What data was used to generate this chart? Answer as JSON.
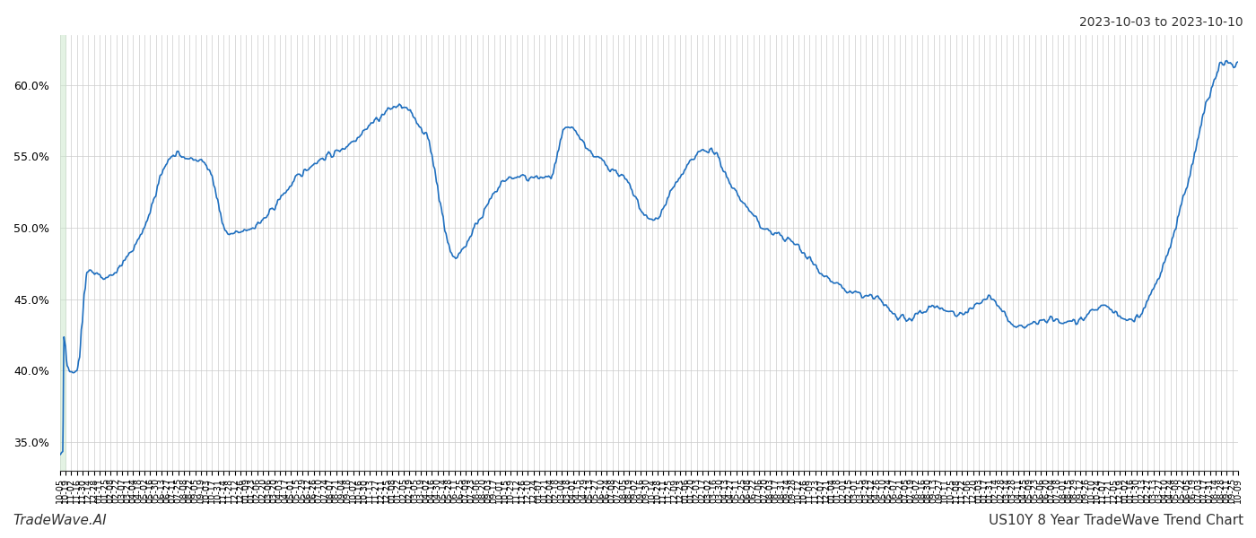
{
  "title_top_right": "2023-10-03 to 2023-10-10",
  "footer_left": "TradeWave.AI",
  "footer_right": "US10Y 8 Year TradeWave Trend Chart",
  "line_color": "#1f6fbf",
  "line_width": 1.2,
  "shading_color": "#c8e6c9",
  "shading_alpha": 0.5,
  "background_color": "#ffffff",
  "grid_color": "#cccccc",
  "ylim": [
    33.0,
    63.5
  ],
  "yticks": [
    35.0,
    40.0,
    45.0,
    50.0,
    55.0,
    60.0
  ],
  "x_tick_interval": 10,
  "figsize": [
    14.0,
    6.0
  ],
  "dpi": 100
}
